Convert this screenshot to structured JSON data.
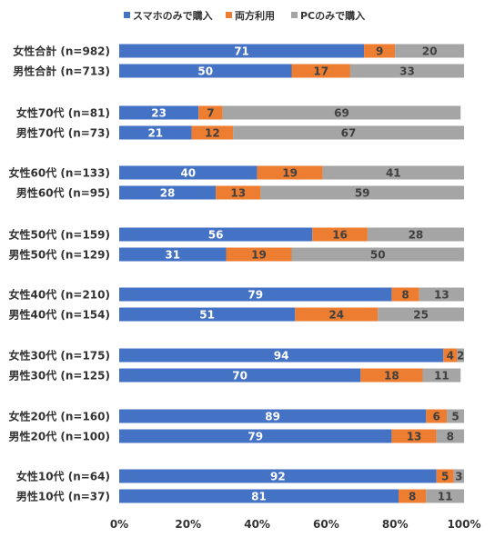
{
  "chart_data": {
    "type": "bar",
    "orientation": "horizontal",
    "stacked": "percent",
    "legend_position": "top",
    "grid": false,
    "xlim": [
      0,
      100
    ],
    "x_ticks": [
      "0%",
      "20%",
      "40%",
      "60%",
      "80%",
      "100%"
    ],
    "categories": [
      "女性合計 (n=982)",
      "男性合計 (n=713)",
      "女性70代 (n=81)",
      "男性70代 (n=73)",
      "女性60代 (n=133)",
      "男性60代 (n=95)",
      "女性50代 (n=159)",
      "男性50代 (n=129)",
      "女性40代 (n=210)",
      "男性40代 (n=154)",
      "女性30代 (n=175)",
      "男性30代 (n=125)",
      "女性20代 (n=160)",
      "男性20代 (n=100)",
      "女性10代 (n=64)",
      "男性10代 (n=37)"
    ],
    "series": [
      {
        "name": "スマホのみで購入",
        "color": "#4472C4",
        "label_color": "#ffffff",
        "values": [
          71,
          50,
          23,
          21,
          40,
          28,
          56,
          31,
          79,
          51,
          94,
          70,
          89,
          79,
          92,
          81
        ]
      },
      {
        "name": "両方利用",
        "color": "#ED7D31",
        "label_color": "#404040",
        "values": [
          9,
          17,
          7,
          12,
          19,
          13,
          16,
          19,
          8,
          24,
          4,
          18,
          6,
          13,
          5,
          8
        ]
      },
      {
        "name": "PCのみで購入",
        "color": "#A5A5A5",
        "label_color": "#404040",
        "values": [
          20,
          33,
          69,
          67,
          41,
          59,
          28,
          50,
          13,
          25,
          2,
          11,
          5,
          8,
          3,
          11
        ]
      }
    ]
  }
}
